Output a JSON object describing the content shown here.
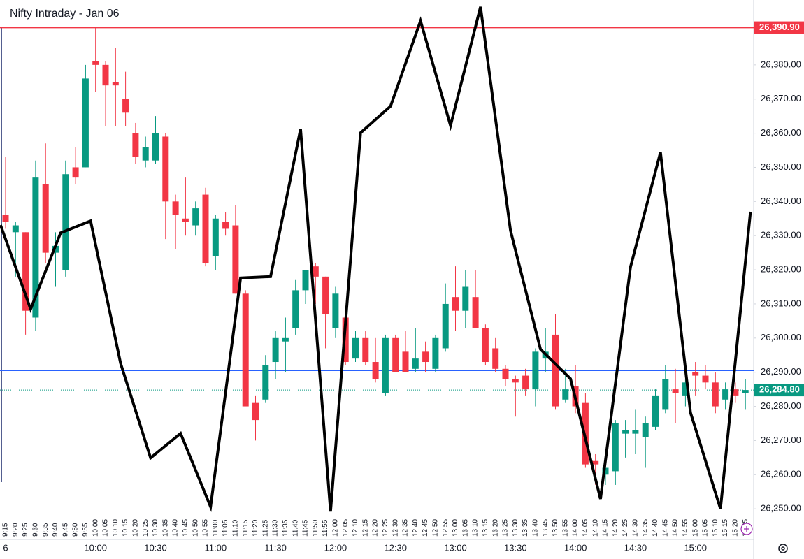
{
  "chart_data": {
    "type": "candlestick",
    "title": "Nifty Intraday - Jan 06",
    "date_label": "6",
    "categories": [
      "9:15",
      "9:20",
      "9:25",
      "9:30",
      "9:35",
      "9:40",
      "9:45",
      "9:50",
      "9:55",
      "10:00",
      "10:05",
      "10:10",
      "10:15",
      "10:20",
      "10:25",
      "10:30",
      "10:35",
      "10:40",
      "10:45",
      "10:50",
      "10:55",
      "11:00",
      "11:05",
      "11:10",
      "11:15",
      "11:20",
      "11:25",
      "11:30",
      "11:35",
      "11:40",
      "11:45",
      "11:50",
      "11:55",
      "12:00",
      "12:05",
      "12:10",
      "12:15",
      "12:20",
      "12:25",
      "12:30",
      "12:35",
      "12:40",
      "12:45",
      "12:50",
      "12:55",
      "13:00",
      "13:05",
      "13:10",
      "13:15",
      "13:20",
      "13:25",
      "13:30",
      "13:35",
      "13:40",
      "13:45",
      "13:50",
      "13:55",
      "14:00",
      "14:05",
      "14:10",
      "14:15",
      "14:20",
      "14:25",
      "14:30",
      "14:35",
      "14:40",
      "14:45",
      "14:50",
      "14:55",
      "15:00",
      "15:05",
      "15:10",
      "15:15",
      "15:20",
      "15:25"
    ],
    "major_ticks": [
      "10:00",
      "10:30",
      "11:00",
      "11:30",
      "12:00",
      "12:30",
      "13:00",
      "13:30",
      "14:00",
      "14:30",
      "15:00"
    ],
    "open": [
      26336,
      26331,
      26331,
      26306,
      26345,
      26325,
      26320,
      26350,
      26350,
      26381,
      26380,
      26375,
      26370,
      26360,
      26352,
      26352,
      26359,
      26340,
      26335,
      26333,
      26342,
      26324,
      26334,
      26333,
      26313,
      26281,
      26282,
      26293,
      26299,
      26303,
      26314,
      26321,
      26318,
      26303,
      26306,
      26294,
      26300,
      26293,
      26284,
      26300,
      26296,
      26291,
      26296,
      26291,
      26297,
      26312,
      26308,
      26312,
      26303,
      26297,
      26291,
      26288,
      26289,
      26285,
      26294,
      26301,
      26282,
      26286,
      26281,
      26264,
      26260,
      26261,
      26272,
      26272,
      26271,
      26274,
      26279,
      26285,
      26283,
      26290,
      26289,
      26287,
      26282,
      26285,
      26284
    ],
    "high": [
      26353,
      26334,
      26331,
      26352,
      26357,
      26331,
      26352,
      26356,
      26380,
      26391,
      26381,
      26385,
      26378,
      26363,
      26359,
      26365,
      26360,
      26342,
      26347,
      26340,
      26344,
      26336,
      26337,
      26339,
      26314,
      26283,
      26295,
      26302,
      26306,
      26317,
      26320,
      26322,
      26318,
      26315,
      26307,
      26302,
      26302,
      26300,
      26301,
      26301,
      26302,
      26303,
      26299,
      26301,
      26316,
      26321,
      26320,
      26320,
      26304,
      26300,
      26292,
      26289,
      26291,
      26297,
      26303,
      26307,
      26291,
      26292,
      26284,
      26266,
      26264,
      26276,
      26276,
      26279,
      26277,
      26285,
      26292,
      26291,
      26288,
      26293,
      26292,
      26290,
      26287,
      26287,
      26288
    ],
    "low": [
      26332,
      26318,
      26301,
      26302,
      26322,
      26315,
      26318,
      26345,
      26350,
      26372,
      26362,
      26362,
      26362,
      26351,
      26350,
      26351,
      26329,
      26326,
      26330,
      26330,
      26321,
      26320,
      26330,
      26313,
      26280,
      26270,
      26281,
      26288,
      26290,
      26301,
      26310,
      26310,
      26297,
      26300,
      26292,
      26293,
      26292,
      26287,
      26283,
      26290,
      26290,
      26290,
      26290,
      26290,
      26296,
      26302,
      26303,
      26303,
      26292,
      26290,
      26286,
      26277,
      26283,
      26280,
      26290,
      26279,
      26281,
      26278,
      26262,
      26257,
      26257,
      26257,
      26265,
      26266,
      26262,
      26273,
      26278,
      26275,
      26280,
      26283,
      26285,
      26278,
      26279,
      26281,
      26279
    ],
    "close": [
      26334,
      26333,
      26308,
      26347,
      26325,
      26327,
      26348,
      26347,
      26376,
      26380,
      26374,
      26374,
      26366,
      26353,
      26356,
      26360,
      26340,
      26336,
      26334,
      26338,
      26322,
      26335,
      26332,
      26313,
      26280,
      26276,
      26292,
      26300,
      26300,
      26314,
      26320,
      26318,
      26307,
      26313,
      26293,
      26300,
      26293,
      26288,
      26300,
      26290,
      26290,
      26294,
      26293,
      26300,
      26310,
      26308,
      26315,
      26303,
      26293,
      26291,
      26288,
      26287,
      26285,
      26296,
      26296,
      26280,
      26285,
      26280,
      26263,
      26263,
      26262,
      26275,
      26273,
      26273,
      26275,
      26283,
      26288,
      26284,
      26287,
      26289,
      26287,
      26280,
      26285,
      26283,
      26284.8
    ],
    "up_color": "#089981",
    "down_color": "#f23645",
    "overlay": {
      "color": "#000000",
      "values": [
        26333.1,
        26308.5,
        26330.8,
        26334.3,
        26292.6,
        26264.9,
        26272.1,
        26250.6,
        26317.6,
        26318.0,
        26361.2,
        26249.2,
        26360.1,
        26367.9,
        26392.9,
        26362.2,
        26397.0,
        26331.5,
        26296.7,
        26288.1,
        26252.9,
        26320.8,
        26354.4,
        26278.2,
        26250.0,
        26337.0
      ]
    },
    "ylim": [
      26248.6,
      26399.0
    ],
    "yticks": [
      {
        "value": 26250,
        "label": "26,250.00"
      },
      {
        "value": 26260,
        "label": "26,260.00"
      },
      {
        "value": 26270,
        "label": "26,270.00"
      },
      {
        "value": 26280,
        "label": "26,280.00"
      },
      {
        "value": 26290,
        "label": "26,290.00"
      },
      {
        "value": 26300,
        "label": "26,300.00"
      },
      {
        "value": 26310,
        "label": "26,310.00"
      },
      {
        "value": 26320,
        "label": "26,320.00"
      },
      {
        "value": 26330,
        "label": "26,330.00"
      },
      {
        "value": 26340,
        "label": "26,340.00"
      },
      {
        "value": 26350,
        "label": "26,350.00"
      },
      {
        "value": 26360,
        "label": "26,360.00"
      },
      {
        "value": 26370,
        "label": "26,370.00"
      },
      {
        "value": 26380,
        "label": "26,380.00"
      }
    ],
    "reference_lines": [
      {
        "value": 26390.9,
        "label": "26,390.90",
        "color": "#f23645",
        "style": "solid"
      },
      {
        "value": 26290.5,
        "color": "#2962ff",
        "style": "solid"
      },
      {
        "value": 26284.8,
        "label": "26,284.80",
        "color": "#089981",
        "style": "dotted"
      }
    ]
  }
}
